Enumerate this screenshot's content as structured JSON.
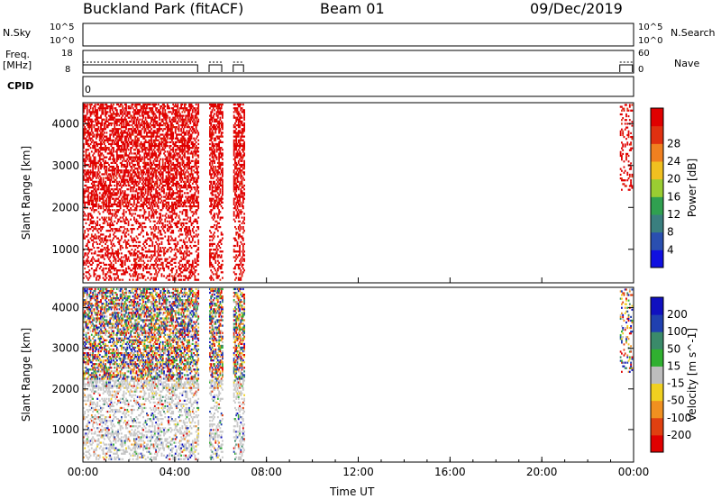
{
  "header": {
    "station": "Buckland Park (fitACF)",
    "beam": "Beam 01",
    "date": "09/Dec/2019"
  },
  "top_panels": {
    "nsky_label": "N.Sky",
    "nsky_ticks": [
      "10^5",
      "10^0"
    ],
    "nsearch_label": "N.Search",
    "nsearch_ticks": [
      "10^5",
      "10^0"
    ],
    "freq_label": "Freq.",
    "freq_unit": "[MHz]",
    "freq_ticks": [
      "18",
      "8"
    ],
    "nave_label": "Nave",
    "nave_ticks": [
      "60",
      "0"
    ],
    "cpid_label": "CPID",
    "cpid_value": "0"
  },
  "colors": {
    "power": [
      "#1010e0",
      "#2a4fb0",
      "#3a7f7f",
      "#30a050",
      "#9acd32",
      "#f0c020",
      "#f08020",
      "#e03010",
      "#e00000"
    ],
    "velocity": [
      "#1010c0",
      "#2040b0",
      "#3a8a6a",
      "#30b030",
      "#bdbdbd",
      "#f0d020",
      "#f09020",
      "#e04010",
      "#e00000"
    ],
    "ground_scatter": "#c8c8c8"
  },
  "chart_data": [
    {
      "type": "heatmap",
      "panel": "power",
      "ylabel": "Slant Range [km]",
      "yticks": [
        1000,
        2000,
        3000,
        4000
      ],
      "ylim": [
        200,
        4500
      ],
      "colorbar_label": "Power [dB]",
      "colorbar_ticks": [
        4,
        8,
        12,
        16,
        20,
        24,
        28
      ],
      "colorbar_range": [
        0,
        32
      ],
      "data_intervals_hours": [
        [
          0.0,
          5.0
        ],
        [
          5.5,
          6.05
        ],
        [
          6.55,
          7.0
        ],
        [
          23.4,
          23.95
        ]
      ],
      "dominant_value": "> 28 dB (red)"
    },
    {
      "type": "heatmap",
      "panel": "velocity",
      "ylabel": "Slant Range [km]",
      "yticks": [
        1000,
        2000,
        3000,
        4000
      ],
      "ylim": [
        200,
        4500
      ],
      "colorbar_label": "Velocity [m s^-1]",
      "colorbar_ticks": [
        200,
        100,
        50,
        15,
        -15,
        -50,
        -100,
        -200
      ],
      "data_intervals_hours": [
        [
          0.0,
          5.0
        ],
        [
          5.5,
          6.05
        ],
        [
          6.55,
          7.0
        ],
        [
          23.4,
          23.95
        ]
      ],
      "ground_scatter_below_km": 2200
    }
  ],
  "x_axis": {
    "ticks": [
      "00:00",
      "04:00",
      "08:00",
      "12:00",
      "16:00",
      "20:00",
      "00:00"
    ],
    "tick_hours": [
      0,
      4,
      8,
      12,
      16,
      20,
      24
    ],
    "label": "Time UT"
  }
}
